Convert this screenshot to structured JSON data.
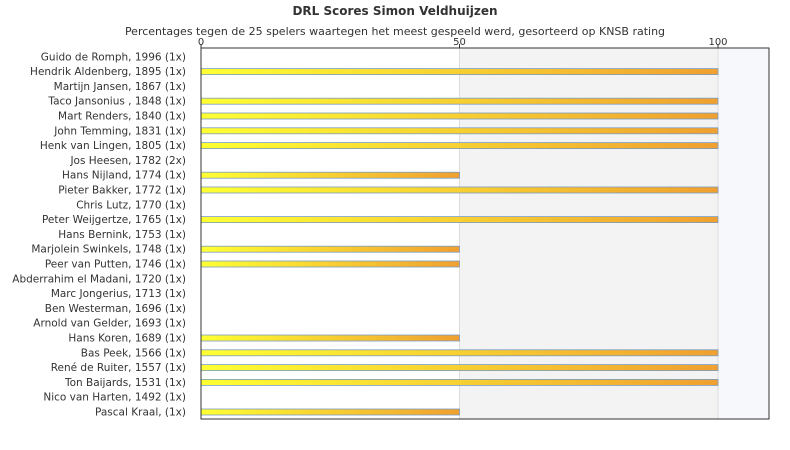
{
  "chart_data": {
    "type": "bar",
    "orientation": "horizontal",
    "title": "DRL Scores Simon Veldhuijzen",
    "subtitle": "Percentages tegen de 25 spelers waartegen het meest gespeeld werd, gesorteerd op KNSB rating",
    "xlim": [
      0,
      110
    ],
    "xticks": [
      0,
      50,
      100
    ],
    "categories": [
      "Guido de Romph, 1996 (1x)",
      "Hendrik Aldenberg, 1895 (1x)",
      "Martijn Jansen, 1867 (1x)",
      "Taco Jansonius , 1848 (1x)",
      "Mart Renders, 1840 (1x)",
      "John Temming, 1831 (1x)",
      "Henk van Lingen, 1805 (1x)",
      "Jos Heesen, 1782 (2x)",
      "Hans Nijland, 1774 (1x)",
      "Pieter Bakker, 1772 (1x)",
      "Chris Lutz, 1770 (1x)",
      "Peter Weijgertze, 1765 (1x)",
      "Hans Bernink, 1753 (1x)",
      "Marjolein Swinkels, 1748 (1x)",
      "Peer van Putten, 1746 (1x)",
      "Abderrahim el Madani, 1720 (1x)",
      "Marc Jongerius, 1713 (1x)",
      "Ben Westerman, 1696 (1x)",
      "Arnold van Gelder, 1693 (1x)",
      "Hans Koren, 1689 (1x)",
      "Bas Peek, 1566 (1x)",
      "René de Ruiter, 1557 (1x)",
      "Ton Baijards, 1531 (1x)",
      "Nico van Harten, 1492 (1x)",
      "Pascal Kraal,  (1x)"
    ],
    "values": [
      0,
      100,
      0,
      100,
      100,
      100,
      100,
      0,
      50,
      100,
      0,
      100,
      0,
      50,
      50,
      0,
      0,
      0,
      0,
      50,
      100,
      100,
      100,
      0,
      50
    ],
    "colors": {
      "bar_start": "#ffff33",
      "bar_end": "#f0a030",
      "bar_outline": "#7a9cc0",
      "band_50_100": "#f3f3f3",
      "band_100_plus": "#f6f8fb",
      "plot_border": "#333333",
      "gridline": "#dddddd"
    }
  }
}
